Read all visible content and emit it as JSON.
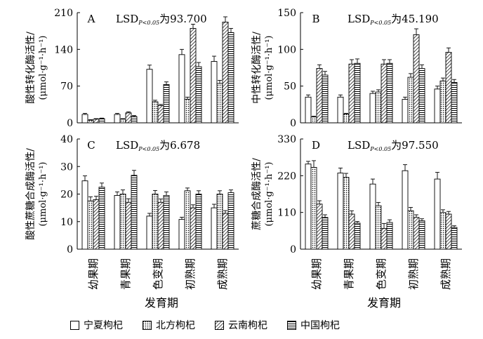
{
  "figure": {
    "x_axis_title": "发育期",
    "legend": [
      {
        "name": "宁夏枸杞",
        "pattern": "white"
      },
      {
        "name": "北方枸杞",
        "pattern": "dots"
      },
      {
        "name": "云南枸杞",
        "pattern": "diag"
      },
      {
        "name": "中国枸杞",
        "pattern": "hlines"
      }
    ]
  },
  "chart_data": [
    {
      "type": "bar",
      "panel": "A",
      "lsd_text": "LSD",
      "lsd_sub": "P<0.05",
      "lsd_value": "为93.700",
      "ylabel": "酸性转化酶活性/",
      "yunit": "(μmol·g⁻¹·h⁻¹)",
      "ylim": [
        0,
        210
      ],
      "yticks": [
        0,
        70,
        140,
        210
      ],
      "categories": [
        "幼果期",
        "青果期",
        "色变期",
        "初熟期",
        "成熟期"
      ],
      "series": [
        {
          "name": "宁夏枸杞",
          "values": [
            16,
            16,
            102,
            130,
            117
          ],
          "errors": [
            2,
            2,
            8,
            10,
            10
          ]
        },
        {
          "name": "北方枸杞",
          "values": [
            5,
            7,
            40,
            45,
            75
          ],
          "errors": [
            1,
            1,
            3,
            4,
            6
          ]
        },
        {
          "name": "云南枸杞",
          "values": [
            7,
            19,
            33,
            180,
            192
          ],
          "errors": [
            1,
            2,
            2,
            8,
            10
          ]
        },
        {
          "name": "中国枸杞",
          "values": [
            8,
            12,
            73,
            107,
            172
          ],
          "errors": [
            1,
            2,
            5,
            8,
            8
          ]
        }
      ],
      "show_x_labels": false
    },
    {
      "type": "bar",
      "panel": "B",
      "lsd_text": "LSD",
      "lsd_sub": "P<0.05",
      "lsd_value": "为45.190",
      "ylabel": "中性转化酶活性/",
      "yunit": "(μmol·g⁻¹·h⁻¹)",
      "ylim": [
        0,
        150
      ],
      "yticks": [
        0,
        50,
        100,
        150
      ],
      "categories": [
        "幼果期",
        "青果期",
        "色变期",
        "初熟期",
        "成熟期"
      ],
      "series": [
        {
          "name": "宁夏枸杞",
          "values": [
            35,
            35,
            40,
            32,
            46
          ],
          "errors": [
            3,
            3,
            3,
            3,
            4
          ]
        },
        {
          "name": "北方枸杞",
          "values": [
            8,
            12,
            42,
            62,
            57
          ],
          "errors": [
            1,
            1,
            3,
            5,
            4
          ]
        },
        {
          "name": "云南枸杞",
          "values": [
            74,
            80,
            80,
            120,
            96
          ],
          "errors": [
            5,
            6,
            6,
            8,
            6
          ]
        },
        {
          "name": "中国枸杞",
          "values": [
            65,
            81,
            81,
            74,
            55
          ],
          "errors": [
            5,
            6,
            5,
            5,
            4
          ]
        }
      ],
      "show_x_labels": false
    },
    {
      "type": "bar",
      "panel": "C",
      "lsd_text": "LSD",
      "lsd_sub": "P<0.05",
      "lsd_value": "为6.678",
      "ylabel": "酸性蔗糖合成酶活性/",
      "yunit": "(μmol·g⁻¹·h⁻¹)",
      "ylim": [
        0,
        40
      ],
      "yticks": [
        0,
        10,
        20,
        30,
        40
      ],
      "categories": [
        "幼果期",
        "青果期",
        "色变期",
        "初熟期",
        "成熟期"
      ],
      "series": [
        {
          "name": "宁夏枸杞",
          "values": [
            24.8,
            19.5,
            12,
            10.8,
            15
          ],
          "errors": [
            1.8,
            1.3,
            1,
            0.8,
            1.3
          ]
        },
        {
          "name": "北方枸杞",
          "values": [
            17.5,
            20,
            20,
            21.2,
            20
          ],
          "errors": [
            1.5,
            1.5,
            1.3,
            1,
            1.2
          ]
        },
        {
          "name": "云南枸杞",
          "values": [
            18,
            17,
            17,
            15,
            13
          ],
          "errors": [
            1.2,
            1.3,
            1.2,
            1.1,
            1
          ]
        },
        {
          "name": "中国枸杞",
          "values": [
            22.5,
            26.8,
            19.5,
            20,
            20.5
          ],
          "errors": [
            1.5,
            1.8,
            1.3,
            1.2,
            1
          ]
        }
      ],
      "show_x_labels": true
    },
    {
      "type": "bar",
      "panel": "D",
      "lsd_text": "LSD",
      "lsd_sub": "P<0.05",
      "lsd_value": "为97.550",
      "ylabel": "蔗糖合成酶活性/",
      "yunit": "(μmol·g⁻¹·h⁻¹)",
      "ylim": [
        0,
        330
      ],
      "yticks": [
        0,
        110,
        220,
        330
      ],
      "categories": [
        "幼果期",
        "青果期",
        "色变期",
        "初熟期",
        "成熟期"
      ],
      "series": [
        {
          "name": "宁夏枸杞",
          "values": [
            255,
            228,
            195,
            235,
            210
          ],
          "errors": [
            8,
            15,
            15,
            18,
            20
          ]
        },
        {
          "name": "北方枸杞",
          "values": [
            245,
            215,
            130,
            115,
            110
          ],
          "errors": [
            20,
            12,
            10,
            10,
            8
          ]
        },
        {
          "name": "云南枸杞",
          "values": [
            135,
            105,
            62,
            95,
            105
          ],
          "errors": [
            10,
            10,
            15,
            8,
            8
          ]
        },
        {
          "name": "中国枸杞",
          "values": [
            95,
            78,
            80,
            85,
            65
          ],
          "errors": [
            8,
            5,
            8,
            6,
            5
          ]
        }
      ],
      "show_x_labels": true
    }
  ]
}
